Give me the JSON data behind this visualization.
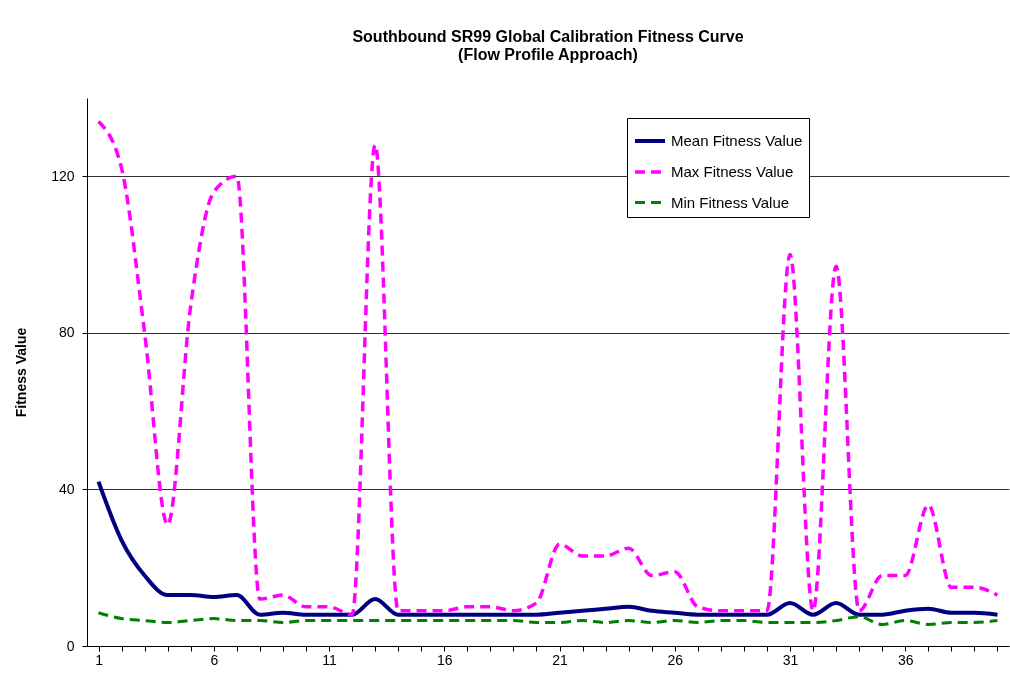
{
  "chart_data": {
    "type": "line",
    "title": [
      "Southbound SR99 Global Calibration Fitness Curve",
      "(Flow Profile Approach)"
    ],
    "ylabel": "Fitness Value",
    "categories": [
      "1",
      null,
      null,
      null,
      null,
      "6",
      null,
      null,
      null,
      null,
      "11",
      null,
      null,
      null,
      null,
      "16",
      null,
      null,
      null,
      null,
      "21",
      null,
      null,
      null,
      null,
      "26",
      null,
      null,
      null,
      null,
      "31",
      null,
      null,
      null,
      null,
      "36",
      null,
      null,
      null,
      null
    ],
    "series": [
      {
        "name": "Mean Fitness Value",
        "color": "#000080",
        "line_style": "solid",
        "values": [
          42,
          27,
          18,
          13,
          13,
          12.5,
          13,
          8,
          8.5,
          8,
          8,
          8,
          12,
          8,
          8,
          8,
          8,
          8,
          8,
          8,
          8.5,
          9,
          9.5,
          10,
          9,
          8.5,
          8,
          8,
          8,
          8,
          11,
          8,
          11,
          8,
          8,
          9,
          9.5,
          8.5,
          8.5,
          8
        ]
      },
      {
        "name": "Max Fitness Value",
        "color": "#ff00ff",
        "line_style": "dashed",
        "values": [
          134,
          122,
          80,
          31,
          87,
          116,
          120,
          12,
          13,
          10,
          10,
          8,
          128,
          9,
          9,
          9,
          10,
          10,
          9,
          11,
          26,
          23,
          23,
          25,
          18,
          19,
          10,
          9,
          9,
          9,
          100,
          9,
          97,
          9,
          18,
          18,
          36,
          15,
          15,
          13
        ]
      },
      {
        "name": "Min Fitness Value",
        "color": "#008000",
        "line_style": "dashed",
        "values": [
          8.5,
          7,
          6.5,
          6,
          6.5,
          7,
          6.5,
          6.5,
          6,
          6.5,
          6.5,
          6.5,
          6.5,
          6.5,
          6.5,
          6.5,
          6.5,
          6.5,
          6.5,
          6,
          6,
          6.5,
          6,
          6.5,
          6,
          6.5,
          6,
          6.5,
          6.5,
          6,
          6,
          6,
          6.5,
          7.5,
          5.5,
          6.5,
          5.5,
          6,
          6,
          6.5
        ]
      }
    ],
    "ylim": [
      0,
      140
    ],
    "yticks": [
      0,
      40,
      80,
      120
    ],
    "grid": "y",
    "legend": "top right"
  }
}
